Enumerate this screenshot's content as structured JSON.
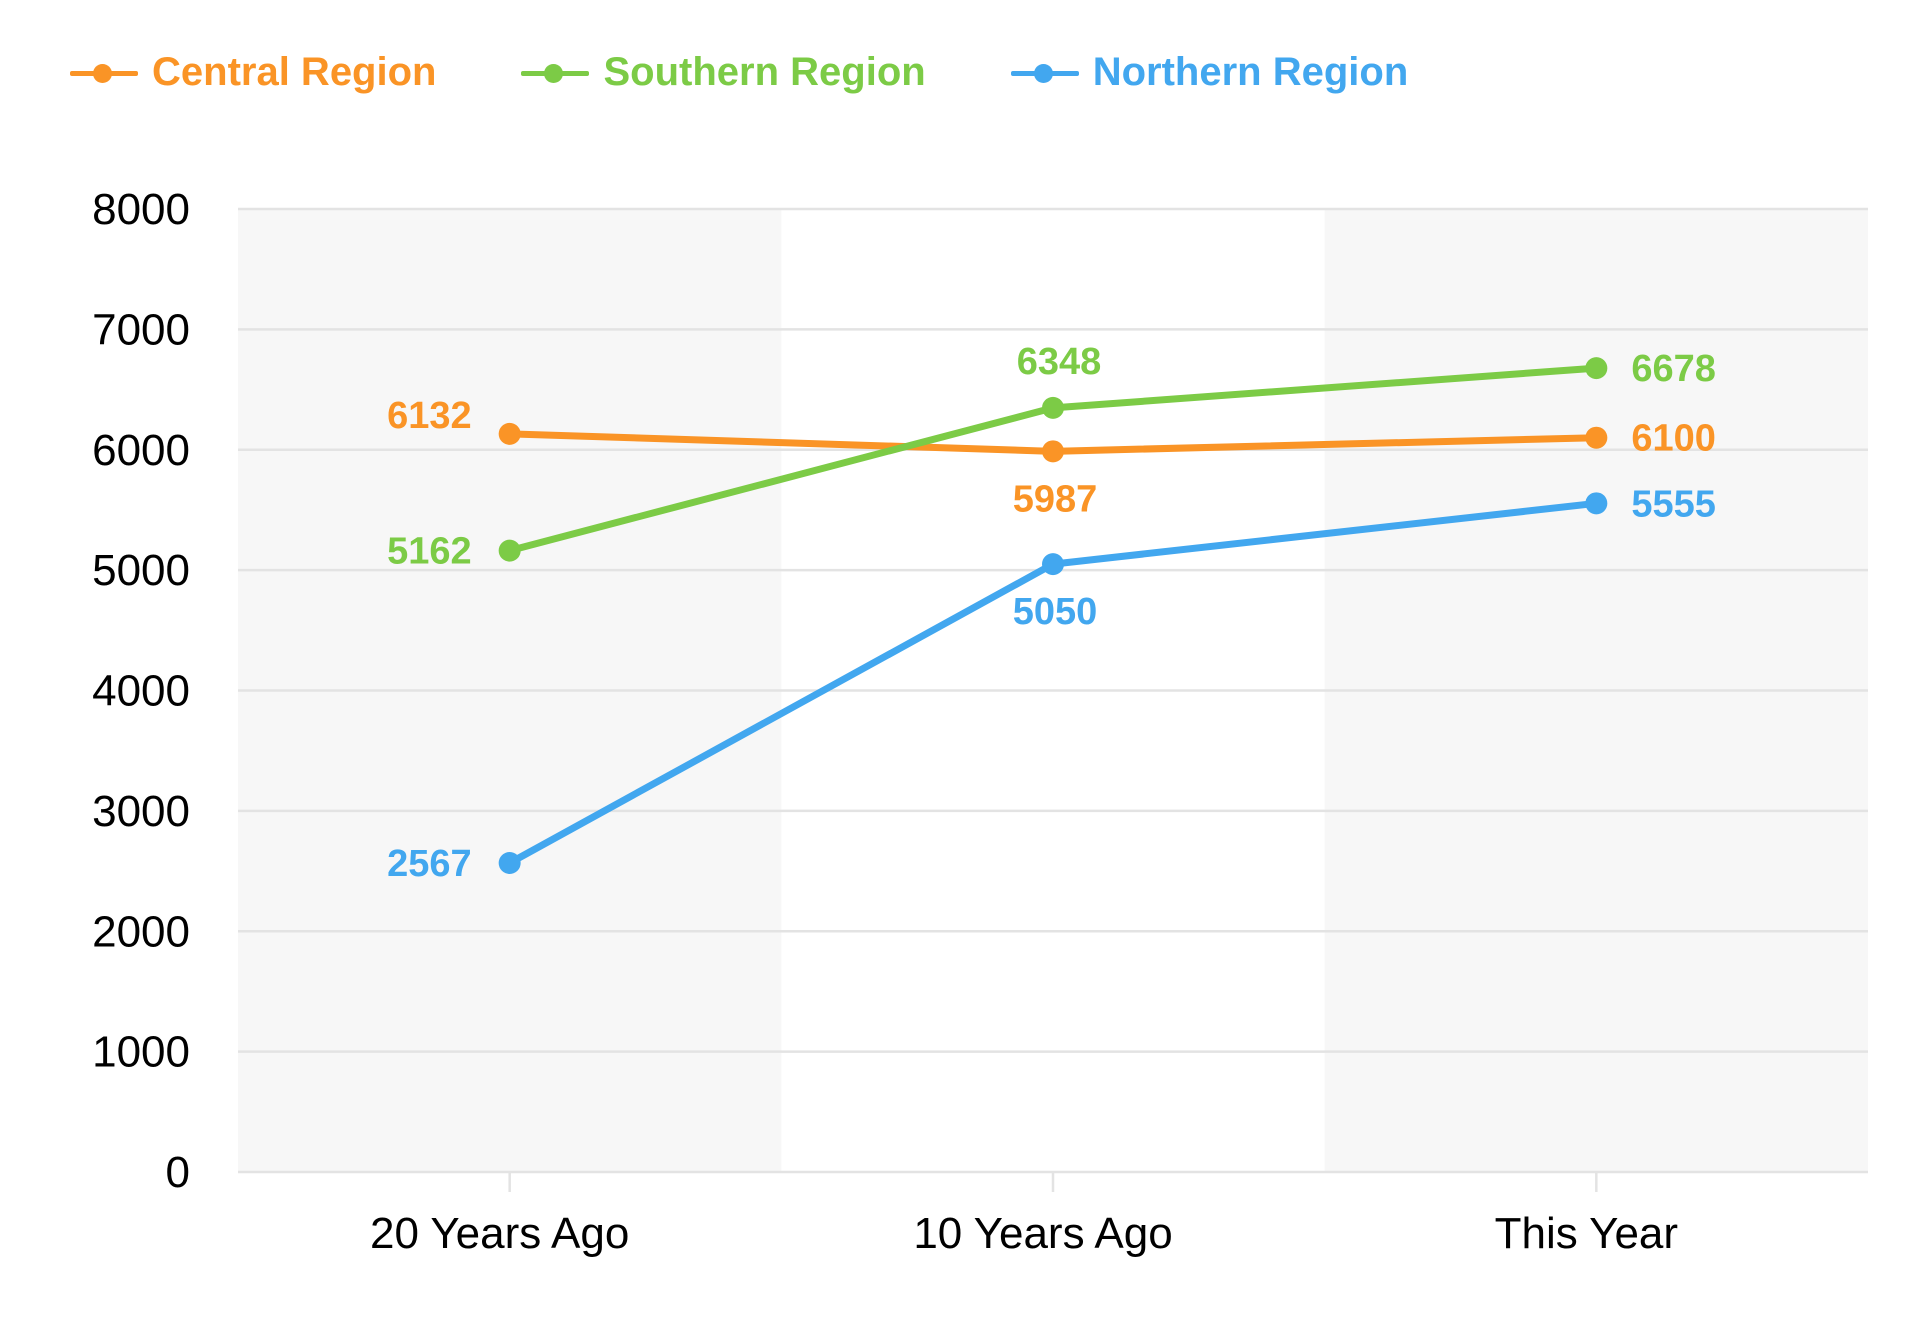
{
  "chart_data": {
    "type": "line",
    "title": "",
    "xlabel": "",
    "ylabel": "",
    "categories": [
      "20 Years Ago",
      "10 Years Ago",
      "This Year"
    ],
    "ylim": [
      0,
      8000
    ],
    "yticks": [
      0,
      1000,
      2000,
      3000,
      4000,
      5000,
      6000,
      7000,
      8000
    ],
    "grid": true,
    "legend_position": "top-left",
    "series": [
      {
        "name": "Central Region",
        "color": "#FA9426",
        "values": [
          6132,
          5987,
          6100
        ]
      },
      {
        "name": "Southern Region",
        "color": "#7CCB46",
        "values": [
          5162,
          6348,
          6678
        ]
      },
      {
        "name": "Northern Region",
        "color": "#42A7EF",
        "values": [
          2567,
          5050,
          5555
        ]
      }
    ]
  }
}
